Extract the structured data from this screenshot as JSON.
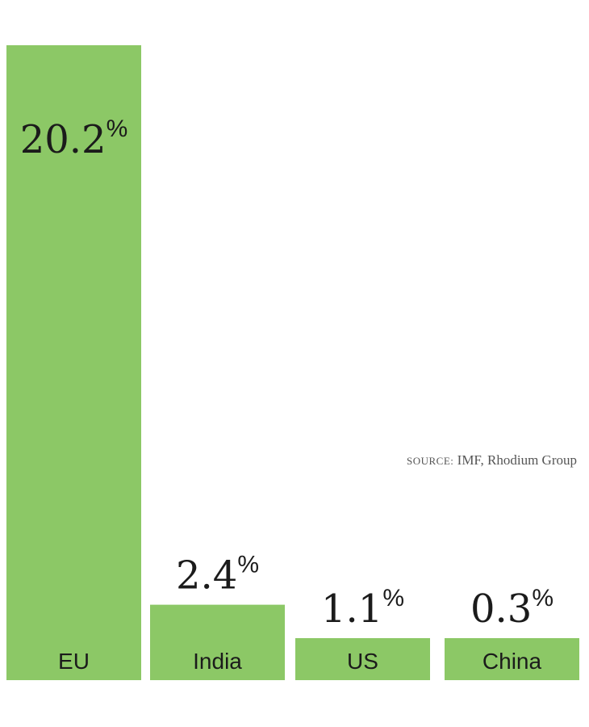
{
  "chart_data": {
    "type": "bar",
    "categories": [
      "EU",
      "India",
      "US",
      "China"
    ],
    "values": [
      20.2,
      2.4,
      1.1,
      0.3
    ],
    "value_labels": [
      "20.2",
      "2.4",
      "1.1",
      "0.3"
    ],
    "value_suffix": "%",
    "title": "",
    "xlabel": "",
    "ylabel": "",
    "ylim": [
      0,
      20.2
    ],
    "grid": false,
    "legend": "none",
    "bar_color": "#8cc866"
  },
  "source": {
    "prefix": "source:",
    "text": " IMF, Rhodium Group"
  }
}
